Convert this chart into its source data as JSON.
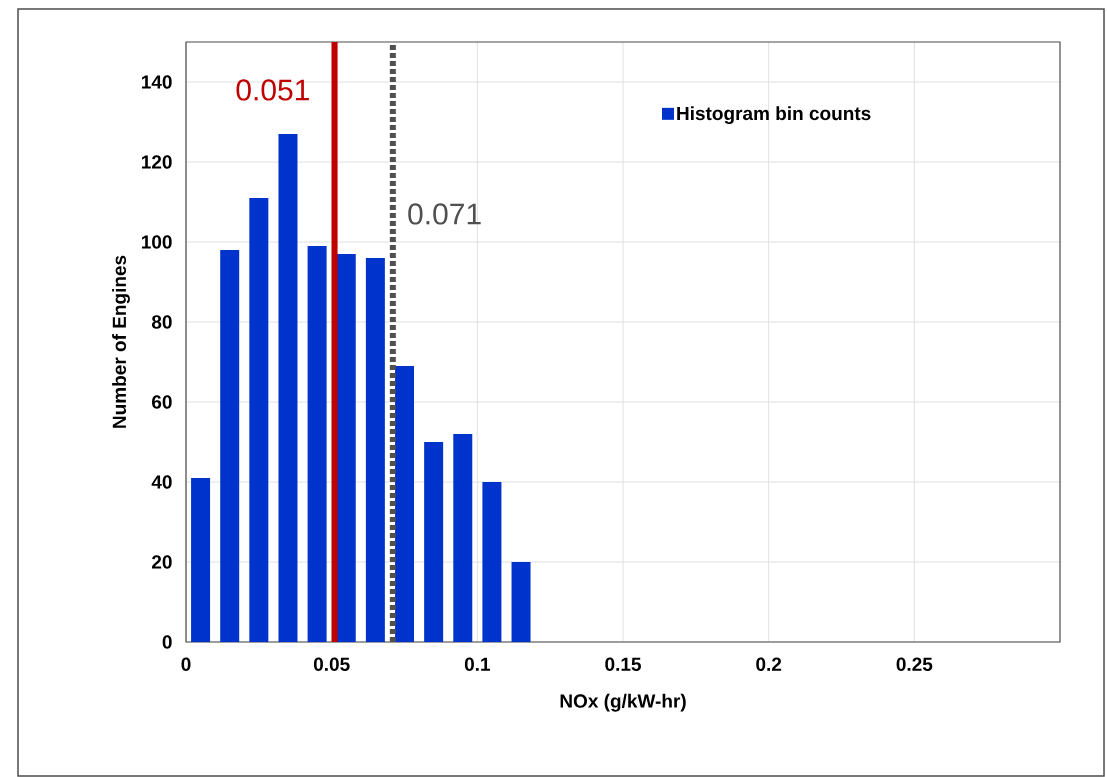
{
  "chart_data": {
    "type": "histogram",
    "xlabel": "NOx (g/kW-hr)",
    "ylabel": "Number of Engines",
    "bins": [
      0,
      0.01,
      0.02,
      0.03,
      0.04,
      0.05,
      0.06,
      0.07,
      0.08,
      0.09,
      0.1,
      0.11,
      0.12
    ],
    "series": [
      {
        "name": "Histogram bin counts",
        "color": "#0033cc",
        "values": [
          41,
          98,
          111,
          127,
          99,
          97,
          96,
          69,
          50,
          52,
          40,
          20
        ]
      }
    ],
    "xlim": [
      0,
      0.3
    ],
    "xticks": [
      0,
      0.05,
      0.1,
      0.15,
      0.2,
      0.25
    ],
    "ylim": [
      0,
      150
    ],
    "yticks": [
      0,
      20,
      40,
      60,
      80,
      100,
      120,
      140
    ],
    "ref_lines": [
      {
        "axis": "x",
        "value": 0.051,
        "label": "0.051",
        "color": "#c00000",
        "line_style": "solid"
      },
      {
        "axis": "x",
        "value": 0.071,
        "label": "0.071",
        "color": "#505050",
        "line_style": "dotted"
      }
    ],
    "grid": true,
    "legend": "top right"
  }
}
